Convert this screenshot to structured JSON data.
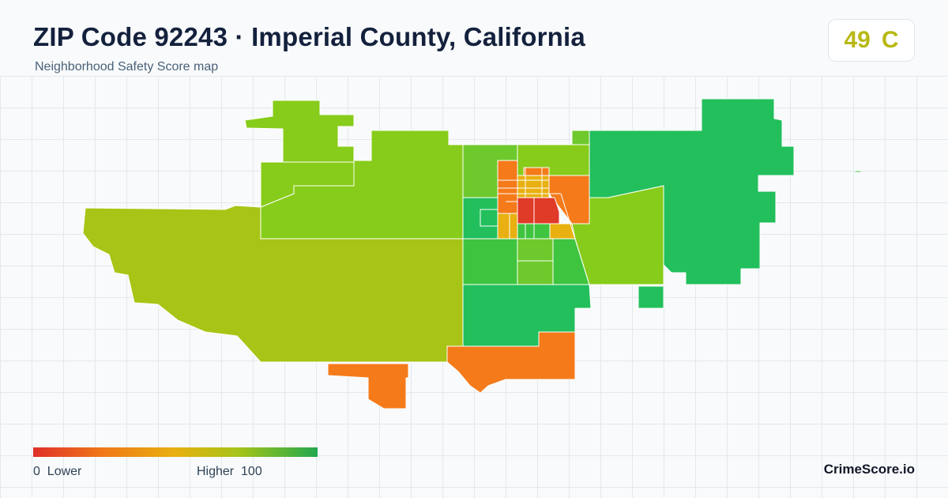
{
  "header": {
    "title": "ZIP Code 92243 · Imperial County, California",
    "subtitle": "Neighborhood Safety Score map"
  },
  "score_badge": {
    "score": "49",
    "grade": "C",
    "color": "#b8b814"
  },
  "legend": {
    "low_value": "0",
    "low_label": "Lower",
    "high_label": "Higher",
    "high_value": "100",
    "color_low": "#e0302a",
    "color_mid_low": "#f07a18",
    "color_mid": "#e8b010",
    "color_mid_high": "#a6c418",
    "color_high": "#22a84f"
  },
  "brand": "CrimeScore.io",
  "colors": {
    "score_90s": "#22bf5c",
    "score_80s": "#3fc43f",
    "score_70s": "#6ec92c",
    "score_60s": "#87cc1a",
    "score_50s": "#a8c416",
    "score_40s": "#e8b010",
    "score_30s": "#f47a1a",
    "score_10s": "#e03a28"
  }
}
